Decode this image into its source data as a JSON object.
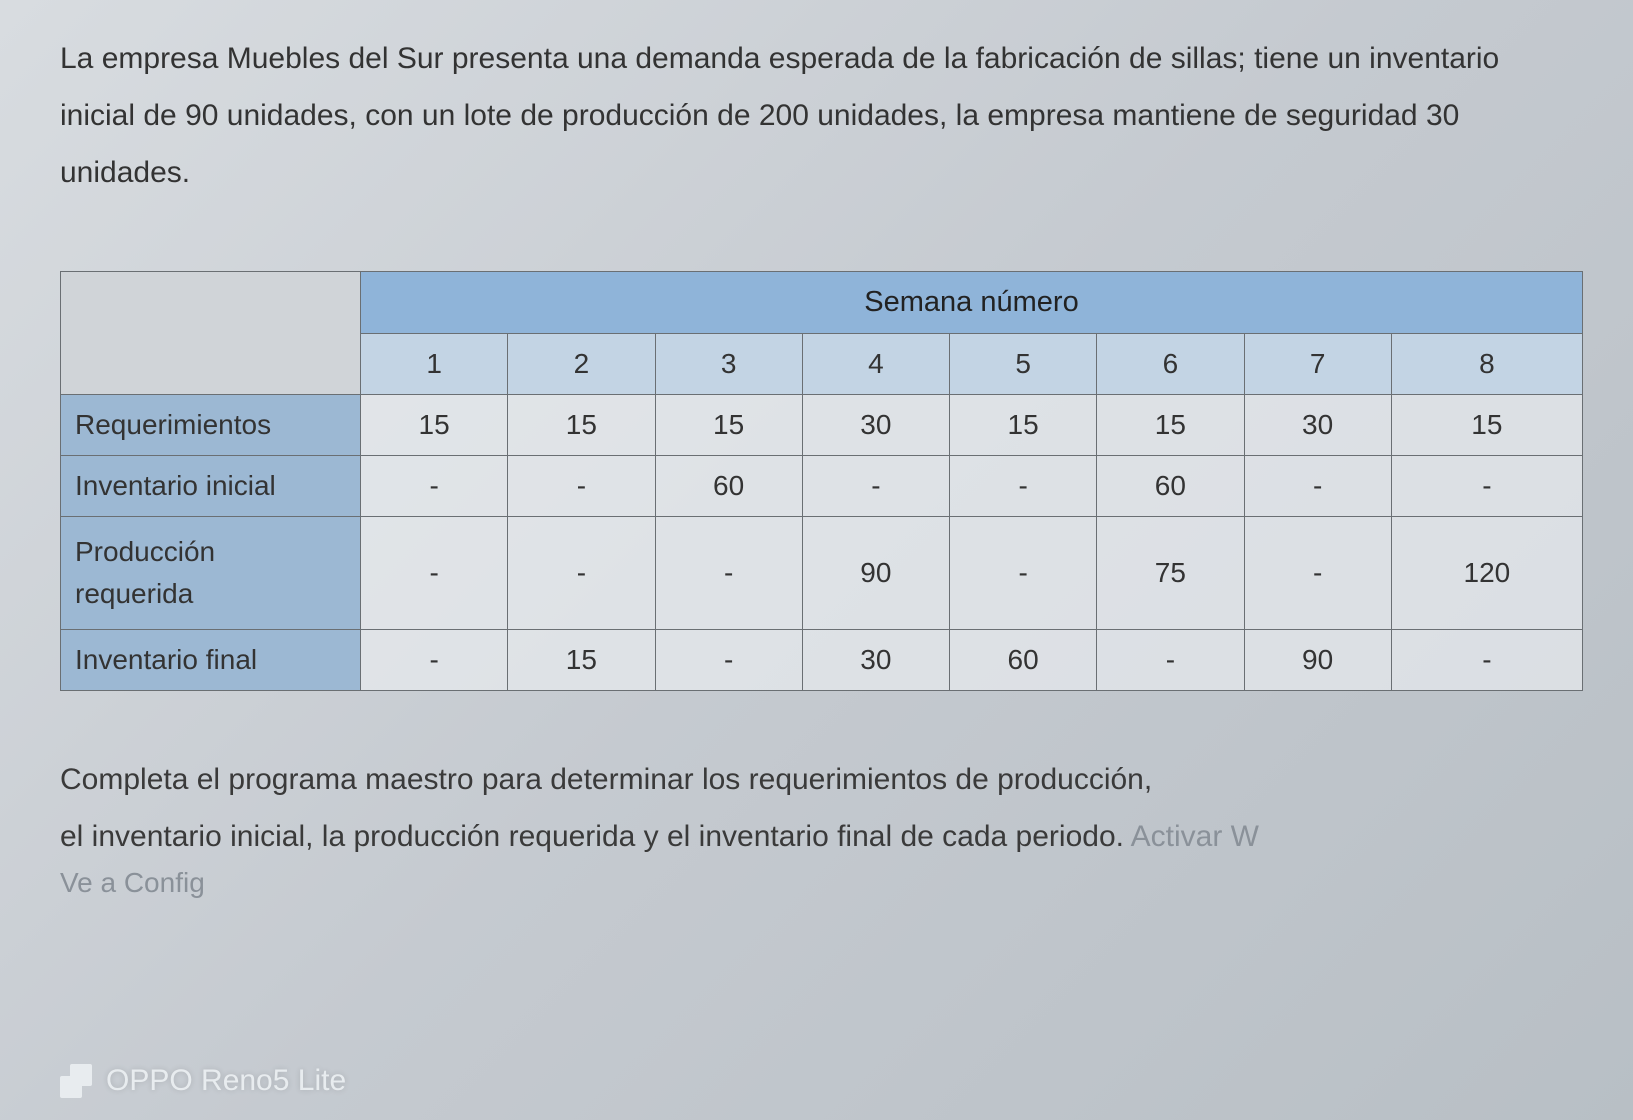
{
  "intro": "La empresa Muebles del Sur presenta una demanda esperada de la fabricación de sillas; tiene un inventario inicial de 90 unidades, con un lote de producción de 200 unidades, la empresa mantiene de seguridad 30 unidades.",
  "table": {
    "header_title": "Semana número",
    "weeks": [
      "1",
      "2",
      "3",
      "4",
      "5",
      "6",
      "7",
      "8"
    ],
    "rows": [
      {
        "label": "Requerimientos",
        "cells": [
          "15",
          "15",
          "15",
          "30",
          "15",
          "15",
          "30",
          "15"
        ]
      },
      {
        "label": "Inventario inicial",
        "cells": [
          "-",
          "-",
          "60",
          "-",
          "-",
          "60",
          "-",
          "-"
        ]
      },
      {
        "label": "Producción requerida",
        "multiline": true,
        "label_line1": "Producción",
        "label_line2": "requerida",
        "cells": [
          "-",
          "-",
          "-",
          "90",
          "-",
          "75",
          "-",
          "120"
        ]
      },
      {
        "label": "Inventario final",
        "cells": [
          "-",
          "15",
          "-",
          "30",
          "60",
          "-",
          "90",
          "-"
        ]
      }
    ],
    "colors": {
      "header_bg": "#8fb4d9",
      "weeknum_bg": "#c3d4e4",
      "rowlabel_bg": "#9cb8d3",
      "cell_bg": "rgba(235,238,241,0.65)",
      "border": "#6a6f73"
    }
  },
  "outro_line1": "Completa el programa maestro para determinar los requerimientos de producción,",
  "outro_line2_a": "el inventario inicial, la producción requerida y el inventario final de cada periodo. ",
  "activar": "Activar W",
  "config": "Ve a Config",
  "watermark": "OPPO Reno5 Lite"
}
